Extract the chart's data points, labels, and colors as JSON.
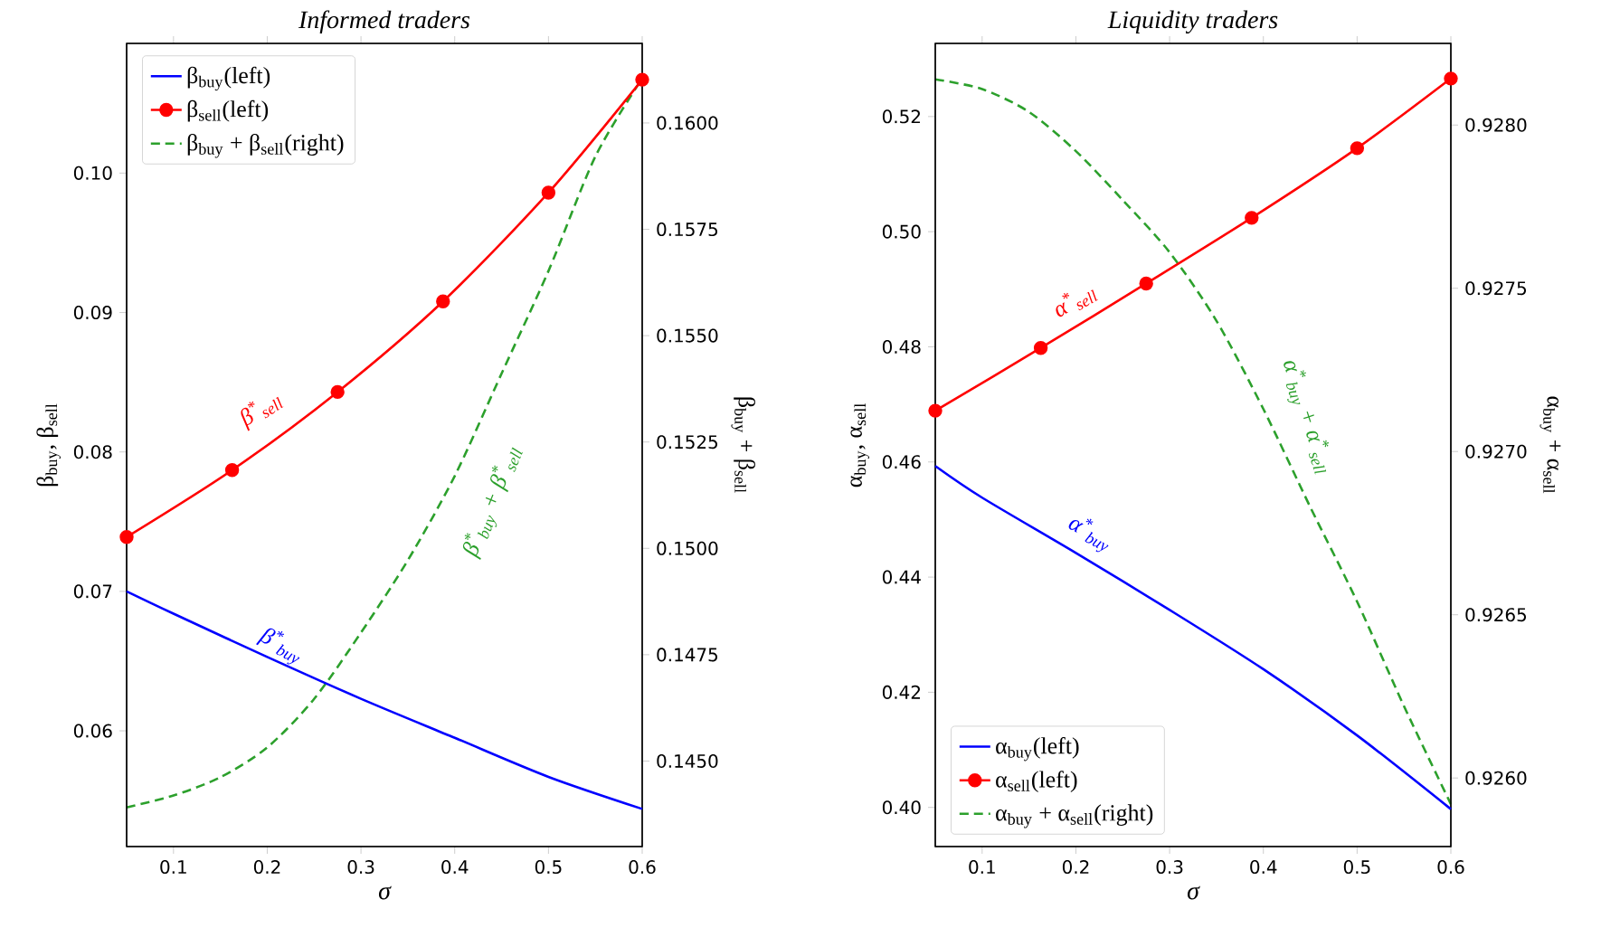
{
  "chart_data": [
    {
      "type": "line",
      "title": "Informed traders",
      "xlabel": "σ",
      "ylabel": "β$_{buy}$, β$_{sell}$",
      "y2label": "β$_{buy}$ + β$_{sell}$",
      "xlim": [
        0.05,
        0.6
      ],
      "xticks": [
        0.1,
        0.2,
        0.3,
        0.4,
        0.5,
        0.6
      ],
      "ylim": [
        0.0517,
        0.1093
      ],
      "yticks": [
        0.06,
        0.07,
        0.08,
        0.09,
        {
          "value": 0.1,
          "label": "0.10"
        }
      ],
      "y2lim": [
        0.14299,
        0.16187
      ],
      "y2ticks": [
        {
          "value": 0.145,
          "label": "0.1450"
        },
        {
          "value": 0.1475,
          "label": "0.1475"
        },
        {
          "value": 0.15,
          "label": "0.1500"
        },
        {
          "value": 0.1525,
          "label": "0.1525"
        },
        {
          "value": 0.155,
          "label": "0.1550"
        },
        {
          "value": 0.1575,
          "label": "0.1575"
        },
        {
          "value": 0.16,
          "label": "0.1600"
        }
      ],
      "legend": "top left",
      "grid": false,
      "series": [
        {
          "name": "β$_{buy}$(left)",
          "color": "#0000ff",
          "x": [
            0.05,
            0.1,
            0.2,
            0.3,
            0.4,
            0.5,
            0.6
          ],
          "values": [
            0.07,
            0.0684,
            0.0653,
            0.0623,
            0.0595,
            0.0567,
            0.0544
          ],
          "line_style": "solid"
        },
        {
          "name": "β$_{sell}$(left)",
          "color": "#ff0000",
          "x": [
            0.05,
            0.1625,
            0.275,
            0.3875,
            0.5,
            0.6
          ],
          "values": [
            0.0739,
            0.0787,
            0.0843,
            0.0908,
            0.0986,
            0.1067
          ],
          "marker": "circle",
          "line_style": "solid"
        },
        {
          "name": "β$_{buy}$ + β$_{sell}$(right)",
          "color": "#2ca02c",
          "axis": "y2",
          "x": [
            0.05,
            0.1,
            0.15,
            0.2,
            0.25,
            0.3,
            0.35,
            0.4,
            0.45,
            0.5,
            0.55,
            0.6
          ],
          "values": [
            0.14391,
            0.14419,
            0.14462,
            0.14532,
            0.14646,
            0.14802,
            0.14972,
            0.1517,
            0.15411,
            0.15652,
            0.15921,
            0.16105
          ],
          "line_style": "dashed"
        }
      ],
      "annotations": [
        "β$^{*}$$_{buy}$",
        "β$^{*}$$_{sell}$",
        "β$^{*}$$_{buy}$ + β$^{*}$$_{sell}$"
      ]
    },
    {
      "type": "line",
      "title": "Liquidity traders",
      "xlabel": "σ",
      "ylabel": "α$_{buy}$, α$_{sell}$",
      "y2label": "α$_{buy}$ + α$_{sell}$",
      "xlim": [
        0.05,
        0.6
      ],
      "xticks": [
        0.1,
        0.2,
        0.3,
        0.4,
        0.5,
        0.6
      ],
      "ylim": [
        0.3932,
        0.5327
      ],
      "yticks": [
        {
          "value": 0.4,
          "label": "0.40"
        },
        0.42,
        0.44,
        0.46,
        0.48,
        {
          "value": 0.5,
          "label": "0.50"
        },
        0.52
      ],
      "y2lim": [
        0.92579,
        0.92825
      ],
      "y2ticks": [
        {
          "value": 0.926,
          "label": "0.9260"
        },
        0.9265,
        {
          "value": 0.927,
          "label": "0.9270"
        },
        0.9275,
        {
          "value": 0.928,
          "label": "0.9280"
        }
      ],
      "legend": "bottom left",
      "grid": false,
      "series": [
        {
          "name": "α$_{buy}$(left)",
          "color": "#0000ff",
          "x": [
            0.05,
            0.1,
            0.2,
            0.3,
            0.4,
            0.5,
            0.6
          ],
          "values": [
            0.4593,
            0.4538,
            0.4442,
            0.4343,
            0.424,
            0.4125,
            0.3997
          ],
          "line_style": "solid"
        },
        {
          "name": "α$_{sell}$(left)",
          "color": "#ff0000",
          "x": [
            0.05,
            0.1625,
            0.275,
            0.3875,
            0.5,
            0.6
          ],
          "values": [
            0.4689,
            0.4798,
            0.491,
            0.5024,
            0.5145,
            0.5266
          ],
          "marker": "circle",
          "line_style": "solid"
        },
        {
          "name": "α$_{buy}$ + α$_{sell}$(right)",
          "color": "#2ca02c",
          "axis": "y2",
          "x": [
            0.05,
            0.1,
            0.15,
            0.2,
            0.25,
            0.3,
            0.35,
            0.4,
            0.45,
            0.5,
            0.55,
            0.6
          ],
          "values": [
            0.92814,
            0.92811,
            0.92804,
            0.92792,
            0.92777,
            0.92761,
            0.9274,
            0.92713,
            0.92683,
            0.92654,
            0.92622,
            0.92592
          ],
          "line_style": "dashed"
        }
      ],
      "annotations": [
        "α$^{*}$$_{buy}$",
        "α$^{*}$$_{sell}$",
        "α$^{*}$$_{buy}$ + α$^{*}$$_{sell}$"
      ]
    }
  ]
}
